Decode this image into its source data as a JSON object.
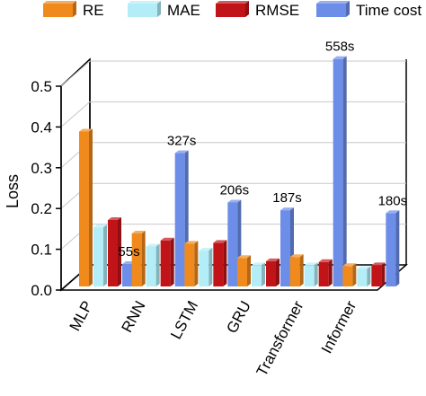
{
  "chart_data": {
    "type": "bar",
    "style": "3d",
    "categories": [
      "MLP",
      "RNN",
      "LSTM",
      "GRU",
      "Transformer",
      "Informer"
    ],
    "series": [
      {
        "name": "RE",
        "color": "#f08a1c",
        "values": [
          0.38,
          0.13,
          0.105,
          0.07,
          0.072,
          0.05
        ]
      },
      {
        "name": "MAE",
        "color": "#b3eef8",
        "values": [
          0.145,
          0.098,
          0.088,
          0.052,
          0.052,
          0.043
        ]
      },
      {
        "name": "RMSE",
        "color": "#c01418",
        "values": [
          0.163,
          0.113,
          0.107,
          0.062,
          0.06,
          0.052
        ]
      },
      {
        "name": "Time cost",
        "color": "#6d8ee8",
        "values": [
          55,
          327,
          206,
          187,
          558,
          180
        ],
        "value_labels": [
          "55s",
          "327s",
          "206s",
          "187s",
          "558s",
          "180s"
        ]
      }
    ],
    "time_cost_scale_seconds_per_loss_unit": 1000,
    "ylabel": "Loss",
    "ylim": [
      0,
      0.5
    ],
    "yticks": [
      "0.0",
      "0.1",
      "0.2",
      "0.3",
      "0.4",
      "0.5"
    ],
    "grid": true,
    "legend_position": "top"
  }
}
